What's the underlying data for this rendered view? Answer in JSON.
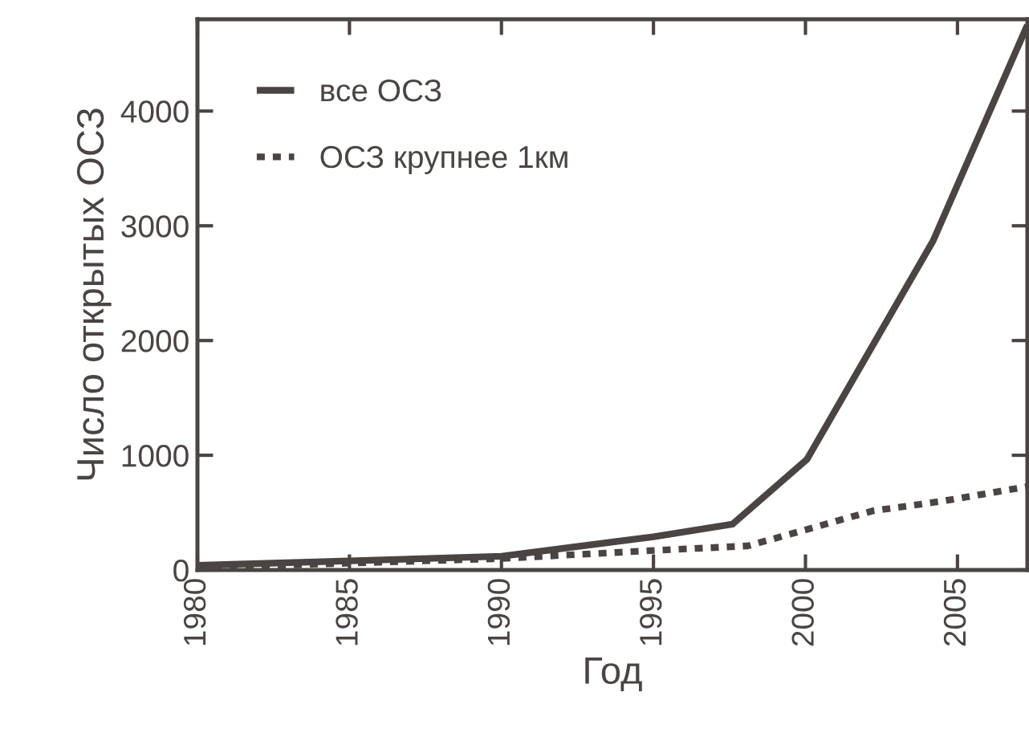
{
  "chart_data": {
    "type": "line",
    "xlabel": "Год",
    "ylabel": "Число открытых ОСЗ",
    "xlim": [
      1980,
      2007.3
    ],
    "ylim": [
      0,
      4800
    ],
    "xticks": [
      1980,
      1985,
      1990,
      1995,
      2000,
      2005
    ],
    "yticks": [
      0,
      1000,
      2000,
      3000,
      4000
    ],
    "grid": false,
    "legend": "top left",
    "series": [
      {
        "name": "все ОСЗ",
        "color": "#4a4442",
        "line_style": "solid",
        "x": [
          1980,
          1985,
          1990,
          1995,
          1997.6,
          2000.05,
          2004.2,
          2007.3
        ],
        "values": [
          40,
          80,
          120,
          290,
          400,
          965,
          2870,
          4750
        ]
      },
      {
        "name": "ОСЗ крупнее 1км",
        "color": "#4a4442",
        "line_style": "dotted",
        "x": [
          1980,
          1985,
          1990,
          1995,
          1998.1,
          2000,
          2002.2,
          2004.5,
          2007.3
        ],
        "values": [
          20,
          60,
          100,
          170,
          210,
          350,
          515,
          600,
          727
        ]
      }
    ]
  }
}
